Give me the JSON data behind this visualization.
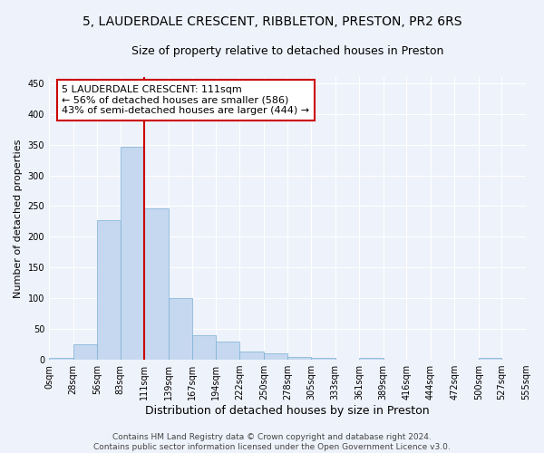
{
  "title": "5, LAUDERDALE CRESCENT, RIBBLETON, PRESTON, PR2 6RS",
  "subtitle": "Size of property relative to detached houses in Preston",
  "xlabel": "Distribution of detached houses by size in Preston",
  "ylabel": "Number of detached properties",
  "bar_color": "#c5d8ef",
  "bar_edge_color": "#7aafd4",
  "background_color": "#eef2fa",
  "grid_color": "#ffffff",
  "bin_edges": [
    0,
    28,
    56,
    83,
    111,
    139,
    167,
    194,
    222,
    250,
    278,
    305,
    333,
    361,
    389,
    416,
    444,
    472,
    500,
    527,
    555
  ],
  "bar_heights": [
    3,
    25,
    227,
    347,
    246,
    100,
    40,
    30,
    13,
    10,
    4,
    3,
    0,
    3,
    0,
    0,
    0,
    0,
    3,
    0
  ],
  "property_size": 111,
  "red_line_color": "#cc0000",
  "annotation_line1": "5 LAUDERDALE CRESCENT: 111sqm",
  "annotation_line2": "← 56% of detached houses are smaller (586)",
  "annotation_line3": "43% of semi-detached houses are larger (444) →",
  "annotation_box_color": "#ffffff",
  "annotation_box_edge": "#cc0000",
  "ylim": [
    0,
    460
  ],
  "yticks": [
    0,
    50,
    100,
    150,
    200,
    250,
    300,
    350,
    400,
    450
  ],
  "footer_text": "Contains HM Land Registry data © Crown copyright and database right 2024.\nContains public sector information licensed under the Open Government Licence v3.0.",
  "title_fontsize": 10,
  "subtitle_fontsize": 9,
  "xlabel_fontsize": 9,
  "ylabel_fontsize": 8,
  "tick_fontsize": 7,
  "annotation_fontsize": 8,
  "footer_fontsize": 6.5
}
